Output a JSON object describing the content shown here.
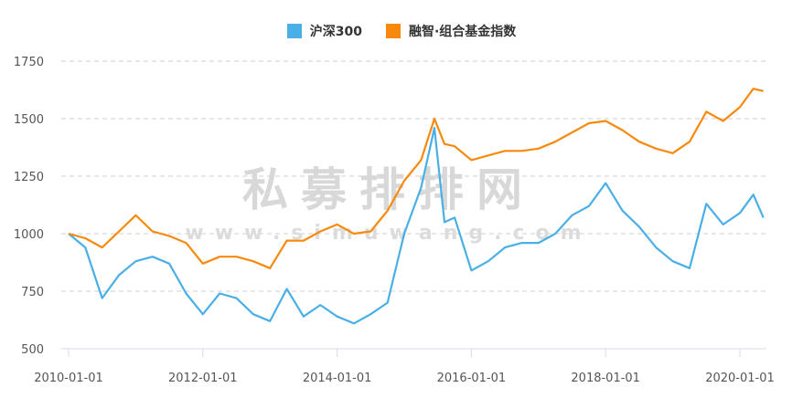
{
  "legend": [
    {
      "label": "沪深300",
      "color": "#4aafe6"
    },
    {
      "label": "融智·组合基金指数",
      "color": "#f7890c"
    }
  ],
  "watermark": {
    "line1": "私募排排网",
    "line2": "www.simuwang.com"
  },
  "chart_data": {
    "type": "line",
    "title": "",
    "xlabel": "",
    "ylabel": "",
    "ylim": [
      500,
      1750
    ],
    "yticks": [
      500,
      750,
      1000,
      1250,
      1500,
      1750
    ],
    "xticks": [
      "2010-01-01",
      "2012-01-01",
      "2014-01-01",
      "2016-01-01",
      "2018-01-01",
      "2020-01-01"
    ],
    "grid": "horizontal dashed",
    "legend_position": "top",
    "x": [
      2010.0,
      2010.25,
      2010.5,
      2010.75,
      2011.0,
      2011.25,
      2011.5,
      2011.75,
      2012.0,
      2012.25,
      2012.5,
      2012.75,
      2013.0,
      2013.25,
      2013.5,
      2013.75,
      2014.0,
      2014.25,
      2014.5,
      2014.75,
      2015.0,
      2015.25,
      2015.45,
      2015.6,
      2015.75,
      2016.0,
      2016.25,
      2016.5,
      2016.75,
      2017.0,
      2017.25,
      2017.5,
      2017.75,
      2018.0,
      2018.25,
      2018.5,
      2018.75,
      2019.0,
      2019.25,
      2019.5,
      2019.75,
      2020.0,
      2020.2,
      2020.35
    ],
    "series": [
      {
        "name": "沪深300",
        "values": [
          1000,
          940,
          720,
          820,
          880,
          900,
          870,
          740,
          650,
          740,
          720,
          650,
          620,
          760,
          640,
          690,
          640,
          610,
          650,
          700,
          1000,
          1200,
          1460,
          1050,
          1070,
          840,
          880,
          940,
          960,
          960,
          1000,
          1080,
          1120,
          1220,
          1100,
          1030,
          940,
          880,
          850,
          1130,
          1040,
          1090,
          1170,
          1070
        ]
      },
      {
        "name": "融智·组合基金指数",
        "values": [
          1000,
          980,
          940,
          1010,
          1080,
          1010,
          990,
          960,
          870,
          900,
          900,
          880,
          850,
          970,
          970,
          1010,
          1040,
          1000,
          1010,
          1100,
          1230,
          1320,
          1500,
          1390,
          1380,
          1320,
          1340,
          1360,
          1360,
          1370,
          1400,
          1440,
          1480,
          1490,
          1450,
          1400,
          1370,
          1350,
          1400,
          1530,
          1490,
          1550,
          1630,
          1620
        ]
      }
    ]
  }
}
